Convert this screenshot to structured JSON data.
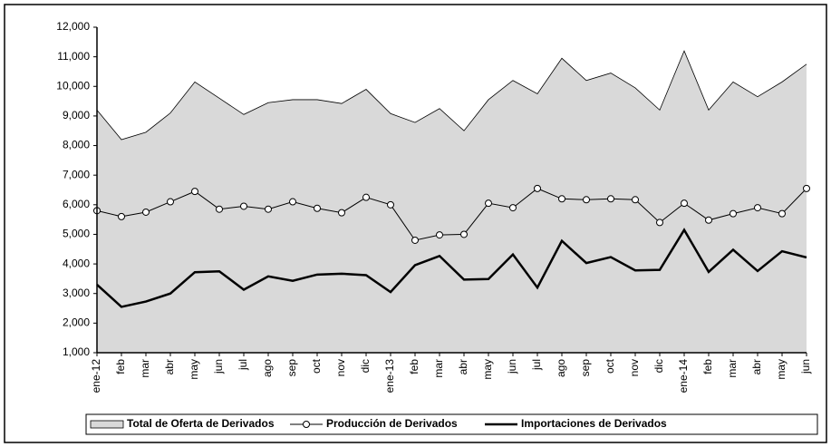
{
  "chart_data": {
    "type": "line",
    "categories": [
      "ene-12",
      "feb",
      "mar",
      "abr",
      "may",
      "jun",
      "jul",
      "ago",
      "sep",
      "oct",
      "nov",
      "dic",
      "ene-13",
      "feb",
      "mar",
      "abr",
      "may",
      "jun",
      "jul",
      "ago",
      "sep",
      "oct",
      "nov",
      "dic",
      "ene-14",
      "feb",
      "mar",
      "abr",
      "may",
      "jun"
    ],
    "series": [
      {
        "name": "Total de Oferta de Derivados",
        "color": "#d9d9d9",
        "fill": true,
        "values": [
          9200,
          8200,
          8450,
          9100,
          10150,
          9600,
          9050,
          9450,
          9550,
          9550,
          9420,
          9900,
          9080,
          8780,
          9250,
          8500,
          9550,
          10200,
          9750,
          10950,
          10200,
          10450,
          9950,
          9200,
          11200,
          9200,
          10150,
          9650,
          10150,
          10750
        ]
      },
      {
        "name": "Producción de Derivados",
        "color": "#000000",
        "marker": "circle",
        "values": [
          5800,
          5600,
          5750,
          6100,
          6450,
          5850,
          5950,
          5850,
          6100,
          5880,
          5730,
          6250,
          6000,
          4800,
          4980,
          5000,
          6050,
          5900,
          6550,
          6200,
          6170,
          6200,
          6170,
          5400,
          6050,
          5480,
          5700,
          5900,
          5700,
          6550
        ]
      },
      {
        "name": "Importaciones de Derivados",
        "color": "#000000",
        "values": [
          3300,
          2550,
          2730,
          3000,
          3720,
          3750,
          3130,
          3580,
          3430,
          3640,
          3670,
          3620,
          3050,
          3960,
          4270,
          3470,
          3490,
          4320,
          3200,
          4780,
          4030,
          4230,
          3780,
          3800,
          5150,
          3730,
          4480,
          3760,
          4430,
          4220
        ]
      }
    ],
    "ylim": [
      1000,
      12000
    ],
    "yticks": [
      {
        "value": 1000,
        "label": "1,000"
      },
      {
        "value": 2000,
        "label": "2,000"
      },
      {
        "value": 3000,
        "label": "3,000"
      },
      {
        "value": 4000,
        "label": "4,000"
      },
      {
        "value": 5000,
        "label": "5,000"
      },
      {
        "value": 6000,
        "label": "6,000"
      },
      {
        "value": 7000,
        "label": "7,000"
      },
      {
        "value": 8000,
        "label": "8,000"
      },
      {
        "value": 9000,
        "label": "9,000"
      },
      {
        "value": 10000,
        "label": "10,000"
      },
      {
        "value": 11000,
        "label": "11,000"
      },
      {
        "value": 12000,
        "label": "12,000"
      }
    ],
    "legend": "bottom"
  }
}
